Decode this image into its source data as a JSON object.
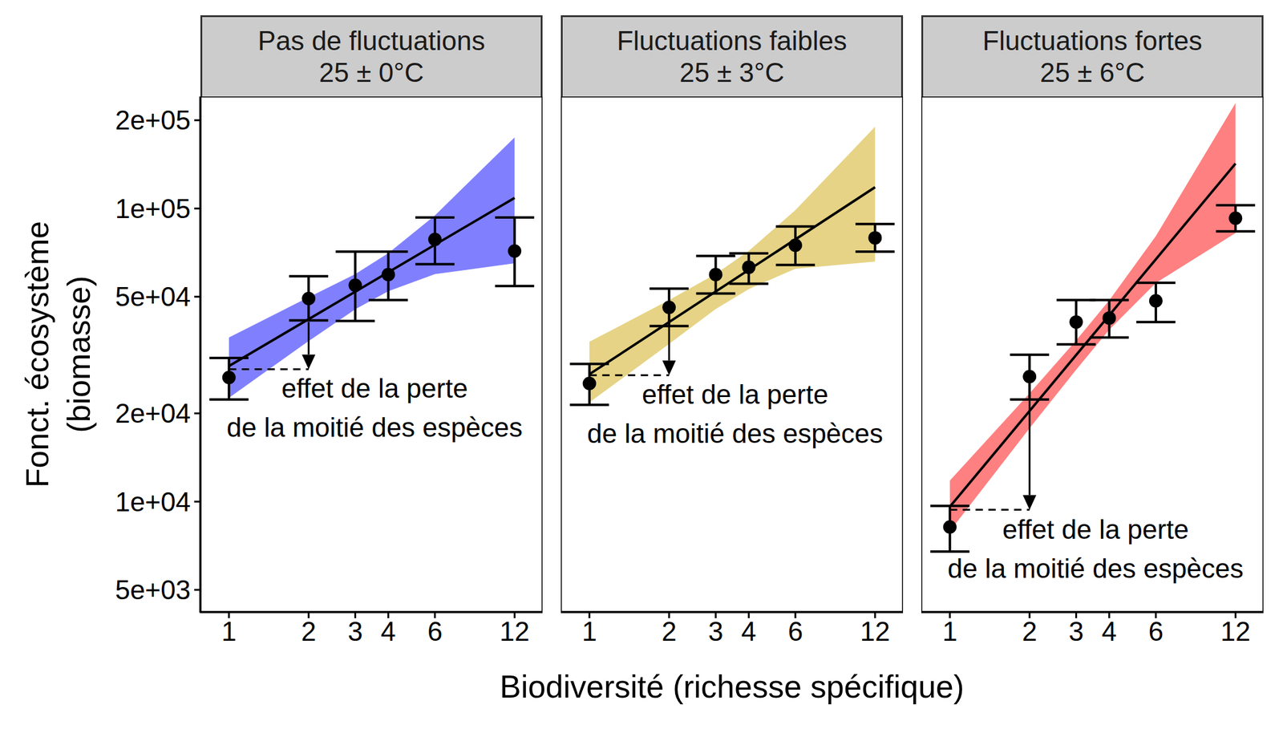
{
  "chart_data": [
    {
      "type": "scatter",
      "title": "Pas de fluctuations",
      "subtitle": "25 ± 0°C",
      "ylabel": "Fonct. écosystème\n(biomasse)",
      "log": true,
      "color": "#8080FF",
      "xlim": [
        0.78,
        15.3
      ],
      "xticks": [
        1,
        2,
        3,
        4,
        6,
        12
      ],
      "ylim": [
        4200,
        241000
      ],
      "yticks": [
        {
          "value": 5000,
          "label": "5e+03"
        },
        {
          "value": 10000,
          "label": "1e+04"
        },
        {
          "value": 20000,
          "label": "2e+04"
        },
        {
          "value": 50000,
          "label": "5e+04"
        },
        {
          "value": 100000,
          "label": "1e+05"
        },
        {
          "value": 200000,
          "label": "2e+05"
        }
      ],
      "x": [
        1,
        2,
        3,
        4,
        6,
        12
      ],
      "values": [
        26500,
        49300,
        54700,
        59500,
        78400,
        71600
      ],
      "error_low": [
        22300,
        41500,
        41300,
        48700,
        64600,
        54400
      ],
      "error_high": [
        30900,
        58700,
        71200,
        71200,
        93200,
        93200
      ],
      "fit": {
        "x": [
          1,
          12
        ],
        "values": [
          29000,
          108700
        ]
      },
      "band": {
        "x": [
          1,
          2,
          3,
          4,
          6,
          12
        ],
        "low": [
          22600,
          35300,
          45300,
          52200,
          59700,
          65000
        ],
        "high": [
          36300,
          49800,
          59700,
          70400,
          94700,
          174800
        ]
      },
      "annotation": {
        "text": "effet de la perte\nde la moitié des espèces",
        "x": [
          1,
          2
        ],
        "y_start": 41000,
        "y_end": 28300
      }
    },
    {
      "type": "scatter",
      "title": "Fluctuations faibles",
      "subtitle": "25 ± 3°C",
      "xlabel": "Biodiversité (richesse spécifique)",
      "log": true,
      "color": "#E6D385",
      "tick_labels": "x",
      "xlim": [
        0.78,
        15.3
      ],
      "xticks": [
        1,
        2,
        3,
        4,
        6,
        12
      ],
      "ylim": [
        4200,
        241000
      ],
      "x": [
        1,
        2,
        3,
        4,
        6,
        12
      ],
      "values": [
        25300,
        46000,
        59500,
        63000,
        74900,
        79400
      ],
      "error_low": [
        21400,
        39700,
        51300,
        55400,
        64200,
        71200
      ],
      "error_high": [
        29500,
        53300,
        68900,
        70300,
        86800,
        88500
      ],
      "fit": {
        "x": [
          1,
          12
        ],
        "values": [
          27200,
          118200
        ]
      },
      "band": {
        "x": [
          1,
          2,
          3,
          4,
          6,
          12
        ],
        "low": [
          21800,
          34500,
          45400,
          53100,
          62300,
          65900
        ],
        "high": [
          35100,
          48700,
          59800,
          71700,
          98700,
          190000
        ]
      },
      "annotation": {
        "text": "effet de la perte\nde la moitié des espèces",
        "x": [
          1,
          2
        ],
        "y_start": 40000,
        "y_end": 27000
      }
    },
    {
      "type": "scatter",
      "title": "Fluctuations fortes",
      "subtitle": "25 ± 6°C",
      "log": true,
      "color": "#FF8080",
      "tick_labels": "x",
      "xlim": [
        0.78,
        15.3
      ],
      "xticks": [
        1,
        2,
        3,
        4,
        6,
        12
      ],
      "ylim": [
        4200,
        241000
      ],
      "x": [
        1,
        2,
        3,
        4,
        6,
        12
      ],
      "values": [
        8190,
        26700,
        41000,
        42300,
        48400,
        92600
      ],
      "error_low": [
        6750,
        22300,
        34400,
        36300,
        41000,
        83600
      ],
      "error_high": [
        9670,
        31700,
        48700,
        48700,
        55800,
        102600
      ],
      "fit": {
        "x": [
          1,
          12
        ],
        "values": [
          9610,
          142300
        ]
      },
      "band": {
        "x": [
          1,
          2,
          3,
          4,
          6,
          12
        ],
        "low": [
          7930,
          17800,
          28200,
          38600,
          55700,
          82500
        ],
        "high": [
          11800,
          23400,
          35500,
          48600,
          80500,
          228800
        ]
      },
      "annotation": {
        "text": "effet de la perte\nde la moitié des espèces",
        "x": [
          1,
          2
        ],
        "y_start": 22100,
        "y_end": 9380
      }
    }
  ]
}
